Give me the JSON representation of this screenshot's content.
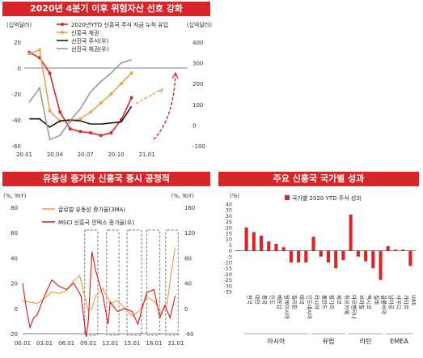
{
  "chart_data": [
    {
      "type": "line",
      "title": "2020년 4분기 이후 위험자산 선호 강화",
      "ylabel_left": "(십억달러)",
      "ylabel_right": "(십억달러)",
      "ylim_left": [
        -60,
        20
      ],
      "ylim_right": [
        -100,
        400
      ],
      "y_ticks_left": [
        20,
        0,
        -20,
        -40,
        -60
      ],
      "y_ticks_right": [
        400,
        300,
        200,
        100,
        0,
        -100
      ],
      "x_ticks": [
        "20.01",
        "20.04",
        "20.07",
        "20.10",
        "21.01"
      ],
      "series": [
        {
          "name": "2020년YTD 신흥국 주식 자금 누적 유입",
          "axis": "left",
          "color": "#d7262a",
          "marker": true,
          "x": [
            0,
            1,
            2,
            3,
            4,
            5,
            6,
            7,
            8,
            9,
            10
          ],
          "values": [
            12,
            8,
            -4,
            -34,
            -47,
            -49,
            -50,
            -52,
            -50,
            -40,
            -23
          ]
        },
        {
          "name": "신흥국 채권",
          "axis": "left",
          "color": "#f0a050",
          "marker": true,
          "x": [
            0,
            1,
            2,
            3,
            4,
            5,
            6,
            7,
            8,
            9,
            10
          ],
          "values": [
            11,
            14,
            -33,
            -41,
            -41,
            -39,
            -34,
            -27,
            -20,
            -12,
            -4
          ]
        },
        {
          "name": "선진국 주식(우)",
          "axis": "right",
          "color": "#1a1a1a",
          "marker": false,
          "x": [
            0,
            1,
            2,
            3,
            4,
            5,
            6,
            7,
            8,
            9,
            10
          ],
          "values": [
            30,
            30,
            -10,
            20,
            25,
            20,
            5,
            5,
            10,
            15,
            90
          ]
        },
        {
          "name": "선진국 채권(우)",
          "axis": "right",
          "color": "#999999",
          "marker": false,
          "x": [
            0,
            1,
            2,
            3,
            4,
            5,
            6,
            7,
            8,
            9,
            10
          ],
          "values": [
            110,
            180,
            -70,
            -50,
            20,
            80,
            160,
            210,
            250,
            300,
            315
          ]
        }
      ]
    },
    {
      "type": "line",
      "title": "유동성 증가와 신흥국 증시 공정적",
      "ylabel_left": "(%, YoY)",
      "ylabel_right": "(%, YoY)",
      "ylim_left": [
        -20,
        80
      ],
      "ylim_right": [
        -40,
        160
      ],
      "y_ticks_left": [
        80,
        60,
        40,
        20,
        0,
        -20
      ],
      "y_ticks_right": [
        160,
        120,
        80,
        40,
        0,
        -40
      ],
      "x_ticks": [
        "00.01",
        "03.01",
        "06.01",
        "09.01",
        "12.01",
        "15.01",
        "18.01",
        "21.01"
      ],
      "series": [
        {
          "name": "글로벌 유동성 증가율(3MA)",
          "axis": "left",
          "color": "#f0a050",
          "x": [
            2000,
            2001,
            2002,
            2003,
            2004,
            2005,
            2006,
            2007,
            2007.8,
            2008.5,
            2009,
            2009.5,
            2010,
            2011,
            2012,
            2013,
            2014,
            2015,
            2016,
            2017,
            2018,
            2019,
            2019.8,
            2020.4,
            2020.9
          ],
          "values": [
            6,
            5,
            4,
            8,
            13,
            12,
            14,
            22,
            26,
            10,
            -2,
            0,
            10,
            16,
            4,
            6,
            0,
            -6,
            -2,
            9,
            6,
            -4,
            4,
            30,
            48
          ]
        },
        {
          "name": "MSCI 신흥국 인덱스 증가율(우)",
          "axis": "right",
          "color": "#d7262a",
          "x": [
            2000,
            2000.5,
            2001,
            2001.5,
            2002,
            2003,
            2004,
            2005,
            2006,
            2007,
            2008,
            2008.7,
            2009,
            2009.5,
            2010,
            2011,
            2011.7,
            2012,
            2013,
            2014,
            2015,
            2015.8,
            2016.5,
            2017,
            2018,
            2018.8,
            2019.5,
            2020.2,
            2020.9
          ],
          "values": [
            40,
            0,
            -30,
            -15,
            -10,
            20,
            45,
            35,
            30,
            40,
            20,
            -45,
            -20,
            90,
            60,
            20,
            -25,
            10,
            -5,
            0,
            -5,
            -25,
            5,
            25,
            30,
            -15,
            5,
            -15,
            20
          ]
        }
      ],
      "annotations": [
        "dashed boxes highlight 5 periods of rising liquidity"
      ]
    },
    {
      "type": "bar",
      "title": "주요 신흥국 국가별 성과",
      "ylabel": "(%)",
      "legend": "국가별 2020 YTD 주식 성과",
      "ylim": [
        -35,
        40
      ],
      "y_ticks": [
        40,
        35,
        30,
        25,
        20,
        15,
        10,
        5,
        0,
        -5,
        -10,
        -15,
        -20,
        -25,
        -30,
        -35
      ],
      "categories": [
        "한국",
        "대만",
        "중국",
        "인도",
        "베트남",
        "말레이시아",
        "필리핀",
        "태국",
        "인도네시아",
        "러시아",
        "폴란드",
        "헝가리",
        "체코",
        "튀르키예",
        "아르헨티나",
        "브라질",
        "멕시코",
        "칠레",
        "콜롬비아",
        "남아공",
        "사우디",
        "카타르",
        "UAE"
      ],
      "values": [
        20,
        16,
        13,
        8,
        6,
        3,
        -10,
        -10,
        -10,
        12,
        -5,
        -10,
        -15,
        -8,
        31,
        -5,
        -9,
        -15,
        -25,
        4,
        1,
        1,
        -13
      ],
      "groups": [
        {
          "label": "아시아",
          "from": 0,
          "to": 8
        },
        {
          "label": "유럽",
          "from": 9,
          "to": 13
        },
        {
          "label": "라틴",
          "from": 14,
          "to": 18
        },
        {
          "label": "EMEA",
          "from": 19,
          "to": 22
        }
      ]
    }
  ]
}
